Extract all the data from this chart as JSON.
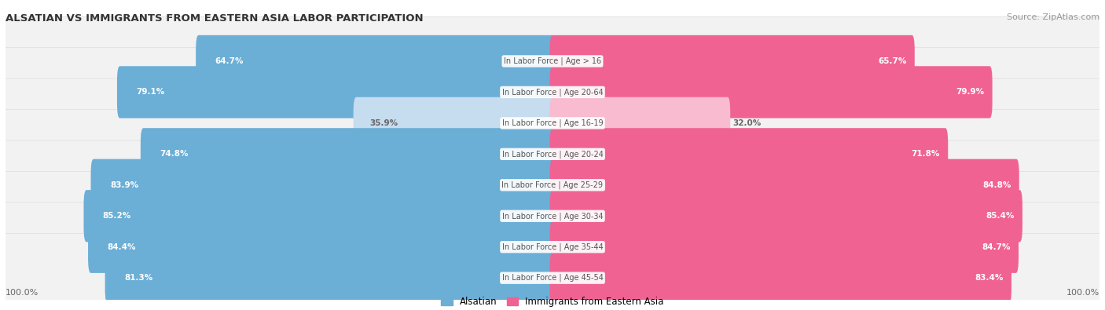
{
  "title": "ALSATIAN VS IMMIGRANTS FROM EASTERN ASIA LABOR PARTICIPATION",
  "source": "Source: ZipAtlas.com",
  "categories": [
    "In Labor Force | Age > 16",
    "In Labor Force | Age 20-64",
    "In Labor Force | Age 16-19",
    "In Labor Force | Age 20-24",
    "In Labor Force | Age 25-29",
    "In Labor Force | Age 30-34",
    "In Labor Force | Age 35-44",
    "In Labor Force | Age 45-54"
  ],
  "alsatian_values": [
    64.7,
    79.1,
    35.9,
    74.8,
    83.9,
    85.2,
    84.4,
    81.3
  ],
  "immigrant_values": [
    65.7,
    79.9,
    32.0,
    71.8,
    84.8,
    85.4,
    84.7,
    83.4
  ],
  "alsatian_color": "#6BAED6",
  "alsatian_color_light": "#C6DCEF",
  "immigrant_color": "#F06292",
  "immigrant_color_light": "#F8BBD0",
  "row_bg_color": "#F2F2F2",
  "row_border_color": "#DDDDDD",
  "label_color_white": "#FFFFFF",
  "label_color_dark": "#666666",
  "center_label_color": "#555555",
  "max_value": 100.0,
  "legend_alsatian": "Alsatian",
  "legend_immigrant": "Immigrants from Eastern Asia",
  "bottom_left_label": "100.0%",
  "bottom_right_label": "100.0%"
}
